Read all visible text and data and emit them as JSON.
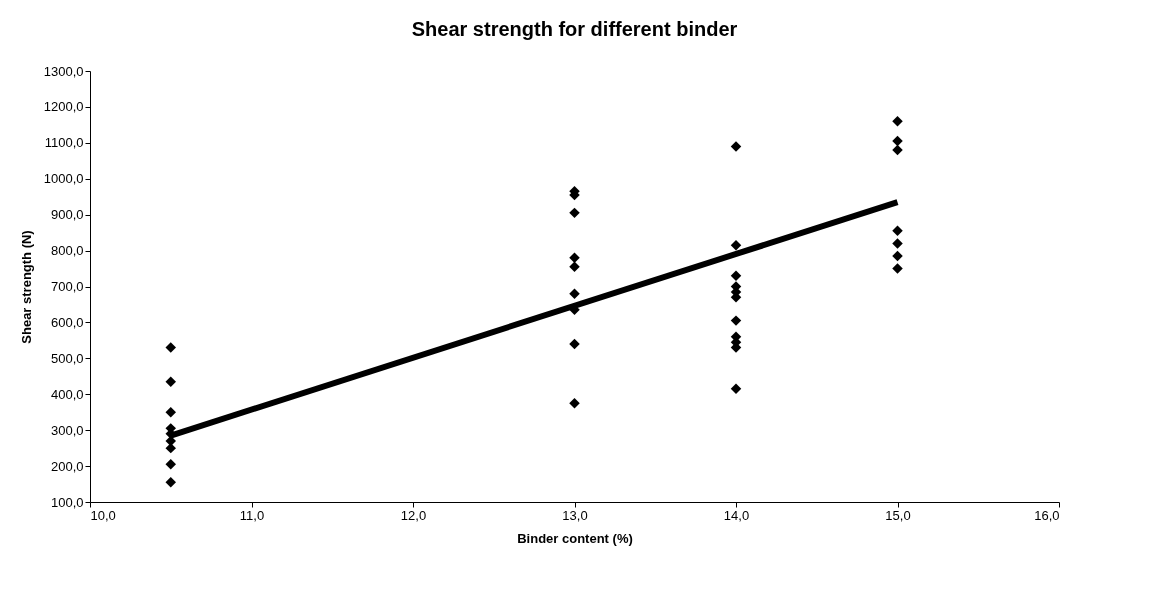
{
  "chart_data": {
    "type": "scatter",
    "title": "Shear strength for different binder",
    "xlabel": "Binder content (%)",
    "ylabel": "Shear strength (N)",
    "xlim": [
      10,
      16
    ],
    "xticks": [
      {
        "value": 10,
        "label": "10,0"
      },
      {
        "value": 11,
        "label": "11,0"
      },
      {
        "value": 12,
        "label": "12,0"
      },
      {
        "value": 13,
        "label": "13,0"
      },
      {
        "value": 14,
        "label": "14,0"
      },
      {
        "value": 15,
        "label": "15,0"
      },
      {
        "value": 16,
        "label": "16,0"
      }
    ],
    "ylim": [
      100,
      1300
    ],
    "yticks": [
      {
        "value": 100,
        "label": "100,0"
      },
      {
        "value": 200,
        "label": "200,0"
      },
      {
        "value": 300,
        "label": "300,0"
      },
      {
        "value": 400,
        "label": "400,0"
      },
      {
        "value": 500,
        "label": "500,0"
      },
      {
        "value": 600,
        "label": "600,0"
      },
      {
        "value": 700,
        "label": "700,0"
      },
      {
        "value": 800,
        "label": "800,0"
      },
      {
        "value": 900,
        "label": "900,0"
      },
      {
        "value": 1000,
        "label": "1000,0"
      },
      {
        "value": 1100,
        "label": "1100,0"
      },
      {
        "value": 1200,
        "label": "1200,0"
      },
      {
        "value": 1300,
        "label": "1300,0"
      }
    ],
    "grid": false,
    "marker": "diamond",
    "series": [
      {
        "color": "#000000",
        "x": [
          10.5,
          10.5,
          10.5,
          10.5,
          10.5,
          10.5,
          10.5,
          10.5,
          10.5,
          13,
          13,
          13,
          13,
          13,
          13,
          13,
          13,
          13,
          14,
          14,
          14,
          14,
          14,
          14,
          14,
          14,
          14,
          14,
          14,
          15,
          15,
          15,
          15,
          15,
          15,
          15
        ],
        "values": [
          530,
          435,
          350,
          305,
          290,
          270,
          250,
          205,
          155,
          965,
          955,
          905,
          780,
          755,
          680,
          635,
          540,
          375,
          1090,
          815,
          730,
          700,
          685,
          670,
          605,
          560,
          545,
          530,
          415,
          1160,
          1105,
          1080,
          855,
          820,
          785,
          750
        ]
      },
      {
        "type": "line",
        "color": "#000000",
        "line_style": "solid",
        "marker": "none",
        "x": [
          10.5,
          15
        ],
        "values": [
          285,
          935
        ]
      }
    ]
  }
}
